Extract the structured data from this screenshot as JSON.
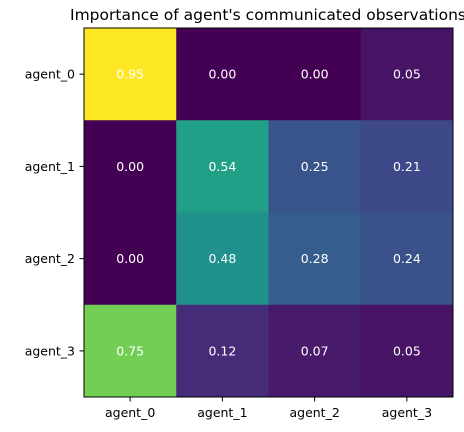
{
  "chart_data": {
    "type": "heatmap",
    "title": "Importance of agent's communicated observations",
    "x_categories": [
      "agent_0",
      "agent_1",
      "agent_2",
      "agent_3"
    ],
    "y_categories": [
      "agent_0",
      "agent_1",
      "agent_2",
      "agent_3"
    ],
    "values": [
      [
        0.95,
        0.0,
        0.0,
        0.05
      ],
      [
        0.0,
        0.54,
        0.25,
        0.21
      ],
      [
        0.0,
        0.48,
        0.28,
        0.24
      ],
      [
        0.75,
        0.12,
        0.07,
        0.05
      ]
    ],
    "value_labels": [
      [
        "0.95",
        "0.00",
        "0.00",
        "0.05"
      ],
      [
        "0.00",
        "0.54",
        "0.25",
        "0.21"
      ],
      [
        "0.00",
        "0.48",
        "0.28",
        "0.24"
      ],
      [
        "0.75",
        "0.12",
        "0.07",
        "0.05"
      ]
    ],
    "colormap": "viridis",
    "color_range": [
      0.0,
      0.95
    ],
    "value_label_color": "#ffffff",
    "grid": false,
    "xlabel": "",
    "ylabel": ""
  }
}
